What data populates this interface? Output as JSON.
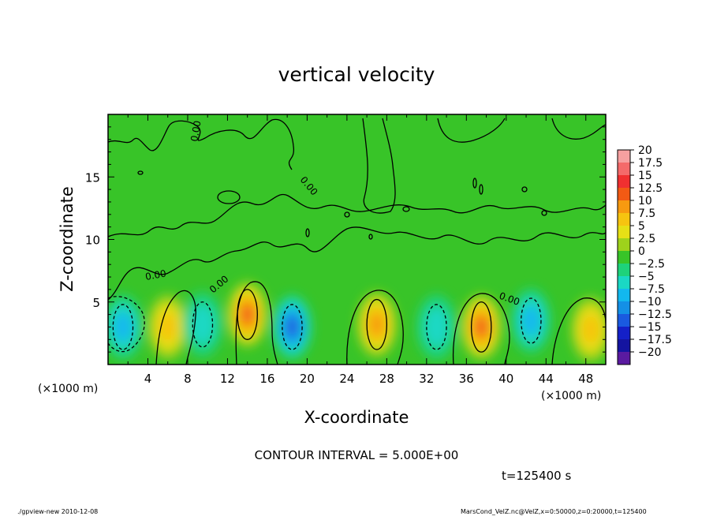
{
  "chart_data": {
    "type": "heatmap",
    "title": "vertical velocity",
    "xlabel": "X-coordinate",
    "ylabel": "Z-coordinate",
    "x_unit": "(×1000 m)",
    "y_unit": "(×1000 m)",
    "xlim": [
      0,
      50
    ],
    "ylim": [
      0,
      20
    ],
    "x_ticks": [
      "4",
      "8",
      "12",
      "16",
      "20",
      "24",
      "28",
      "32",
      "36",
      "40",
      "44",
      "48"
    ],
    "y_ticks": [
      "5",
      "10",
      "15"
    ],
    "colorbar": {
      "levels": [
        "20",
        "17.5",
        "15",
        "12.5",
        "10",
        "7.5",
        "5",
        "2.5",
        "0",
        "−2.5",
        "−5",
        "−7.5",
        "−10",
        "−12.5",
        "−15",
        "−17.5",
        "−20"
      ],
      "colors": [
        "#f6a0a0",
        "#f46a6a",
        "#f03030",
        "#f25a14",
        "#f79a10",
        "#f6c410",
        "#e6e016",
        "#9ed21c",
        "#38c428",
        "#1ed27a",
        "#1ad8c4",
        "#12b8ee",
        "#1490e6",
        "#1a5ae0",
        "#1420c8",
        "#1414a0",
        "#5a1aa0"
      ]
    },
    "updrafts": [
      {
        "x": 6.0,
        "z": 3.0,
        "peak": 7.5
      },
      {
        "x": 14.0,
        "z": 4.0,
        "peak": 12.5
      },
      {
        "x": 27.0,
        "z": 3.2,
        "peak": 10
      },
      {
        "x": 37.5,
        "z": 3.0,
        "peak": 12.5
      },
      {
        "x": 48.5,
        "z": 2.8,
        "peak": 7.5
      }
    ],
    "downdrafts": [
      {
        "x": 1.5,
        "z": 3.0,
        "peak": -7.5
      },
      {
        "x": 9.5,
        "z": 3.2,
        "peak": -5
      },
      {
        "x": 18.5,
        "z": 3.0,
        "peak": -12.5
      },
      {
        "x": 33.0,
        "z": 3.0,
        "peak": -5
      },
      {
        "x": 42.5,
        "z": 3.5,
        "peak": -7.5
      }
    ],
    "contour_label": "0.00",
    "contour_interval_text": "CONTOUR INTERVAL = 5.000E+00",
    "time_text": "t=125400  s"
  },
  "footer": {
    "left": "./gpview-new   2010-12-08",
    "right": "MarsCond_VelZ.nc@VelZ,x=0:50000,z=0:20000,t=125400"
  }
}
